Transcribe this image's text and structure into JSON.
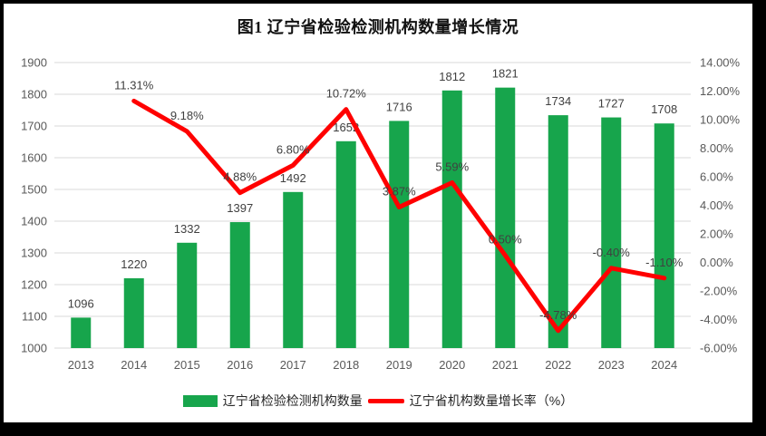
{
  "title": "图1 辽宁省检验检测机构数量增长情况",
  "chart_data": {
    "type": "combo-bar-line",
    "categories": [
      "2013",
      "2014",
      "2015",
      "2016",
      "2017",
      "2018",
      "2019",
      "2020",
      "2021",
      "2022",
      "2023",
      "2024"
    ],
    "series": [
      {
        "name": "辽宁省检验检测机构数量",
        "type": "bar",
        "axis": "left",
        "color": "#17A54C",
        "values": [
          1096,
          1220,
          1332,
          1397,
          1492,
          1652,
          1716,
          1812,
          1821,
          1734,
          1727,
          1708
        ]
      },
      {
        "name": "辽宁省机构数量增长率（%）",
        "type": "line",
        "axis": "right",
        "color": "#FF0000",
        "values": [
          null,
          11.31,
          9.18,
          4.88,
          6.8,
          10.72,
          3.87,
          5.59,
          0.5,
          -4.78,
          -0.4,
          -1.1
        ],
        "label_format": "percent2"
      }
    ],
    "left_axis": {
      "min": 1000,
      "max": 1900,
      "step": 100,
      "format": "integer"
    },
    "right_axis": {
      "min": -6,
      "max": 14,
      "step": 2,
      "format": "percent2"
    },
    "grid": true,
    "gridline_color": "#D9D9D9",
    "legend_position": "bottom"
  }
}
